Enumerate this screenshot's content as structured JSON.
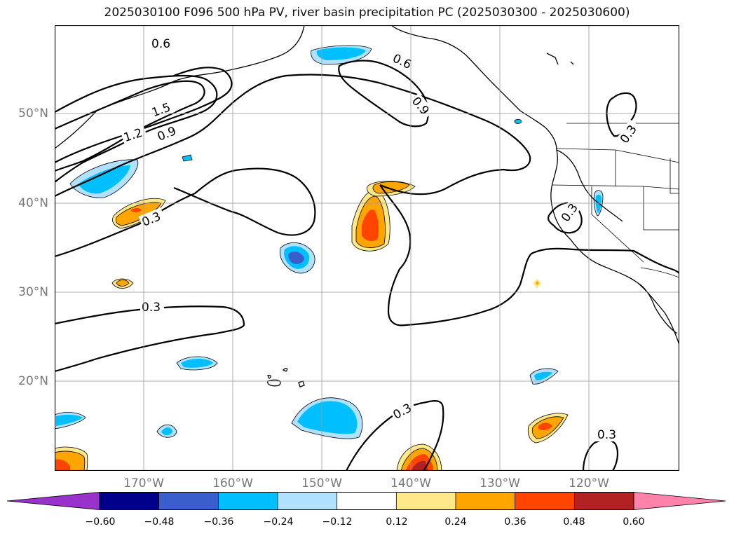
{
  "title": "2025030100 F096 500 hPa PV, river basin precipitation PC (2025030300 - 2025030600)",
  "lat_labels": [
    "50°N",
    "40°N",
    "30°N",
    "20°N"
  ],
  "lon_labels": [
    "170°W",
    "160°W",
    "150°W",
    "140°W",
    "130°W",
    "120°W"
  ],
  "contour_labels": [
    "0.6",
    "1.5",
    "1.2",
    "0.9",
    "0.6",
    "0.9",
    "0.3",
    "0.3",
    "0.3",
    "0.3",
    "0.3",
    "0.3"
  ],
  "colorbar": {
    "ticks": [
      "−0.60",
      "−0.48",
      "−0.36",
      "−0.24",
      "−0.12",
      "0.12",
      "0.24",
      "0.36",
      "0.48",
      "0.60"
    ],
    "colors": [
      "#9932cc",
      "#00008b",
      "#3a5fcd",
      "#00bfff",
      "#b0e2ff",
      "#ffffff",
      "#ffe88a",
      "#ffa500",
      "#ff4500",
      "#b22222",
      "#ff82ab"
    ]
  }
}
